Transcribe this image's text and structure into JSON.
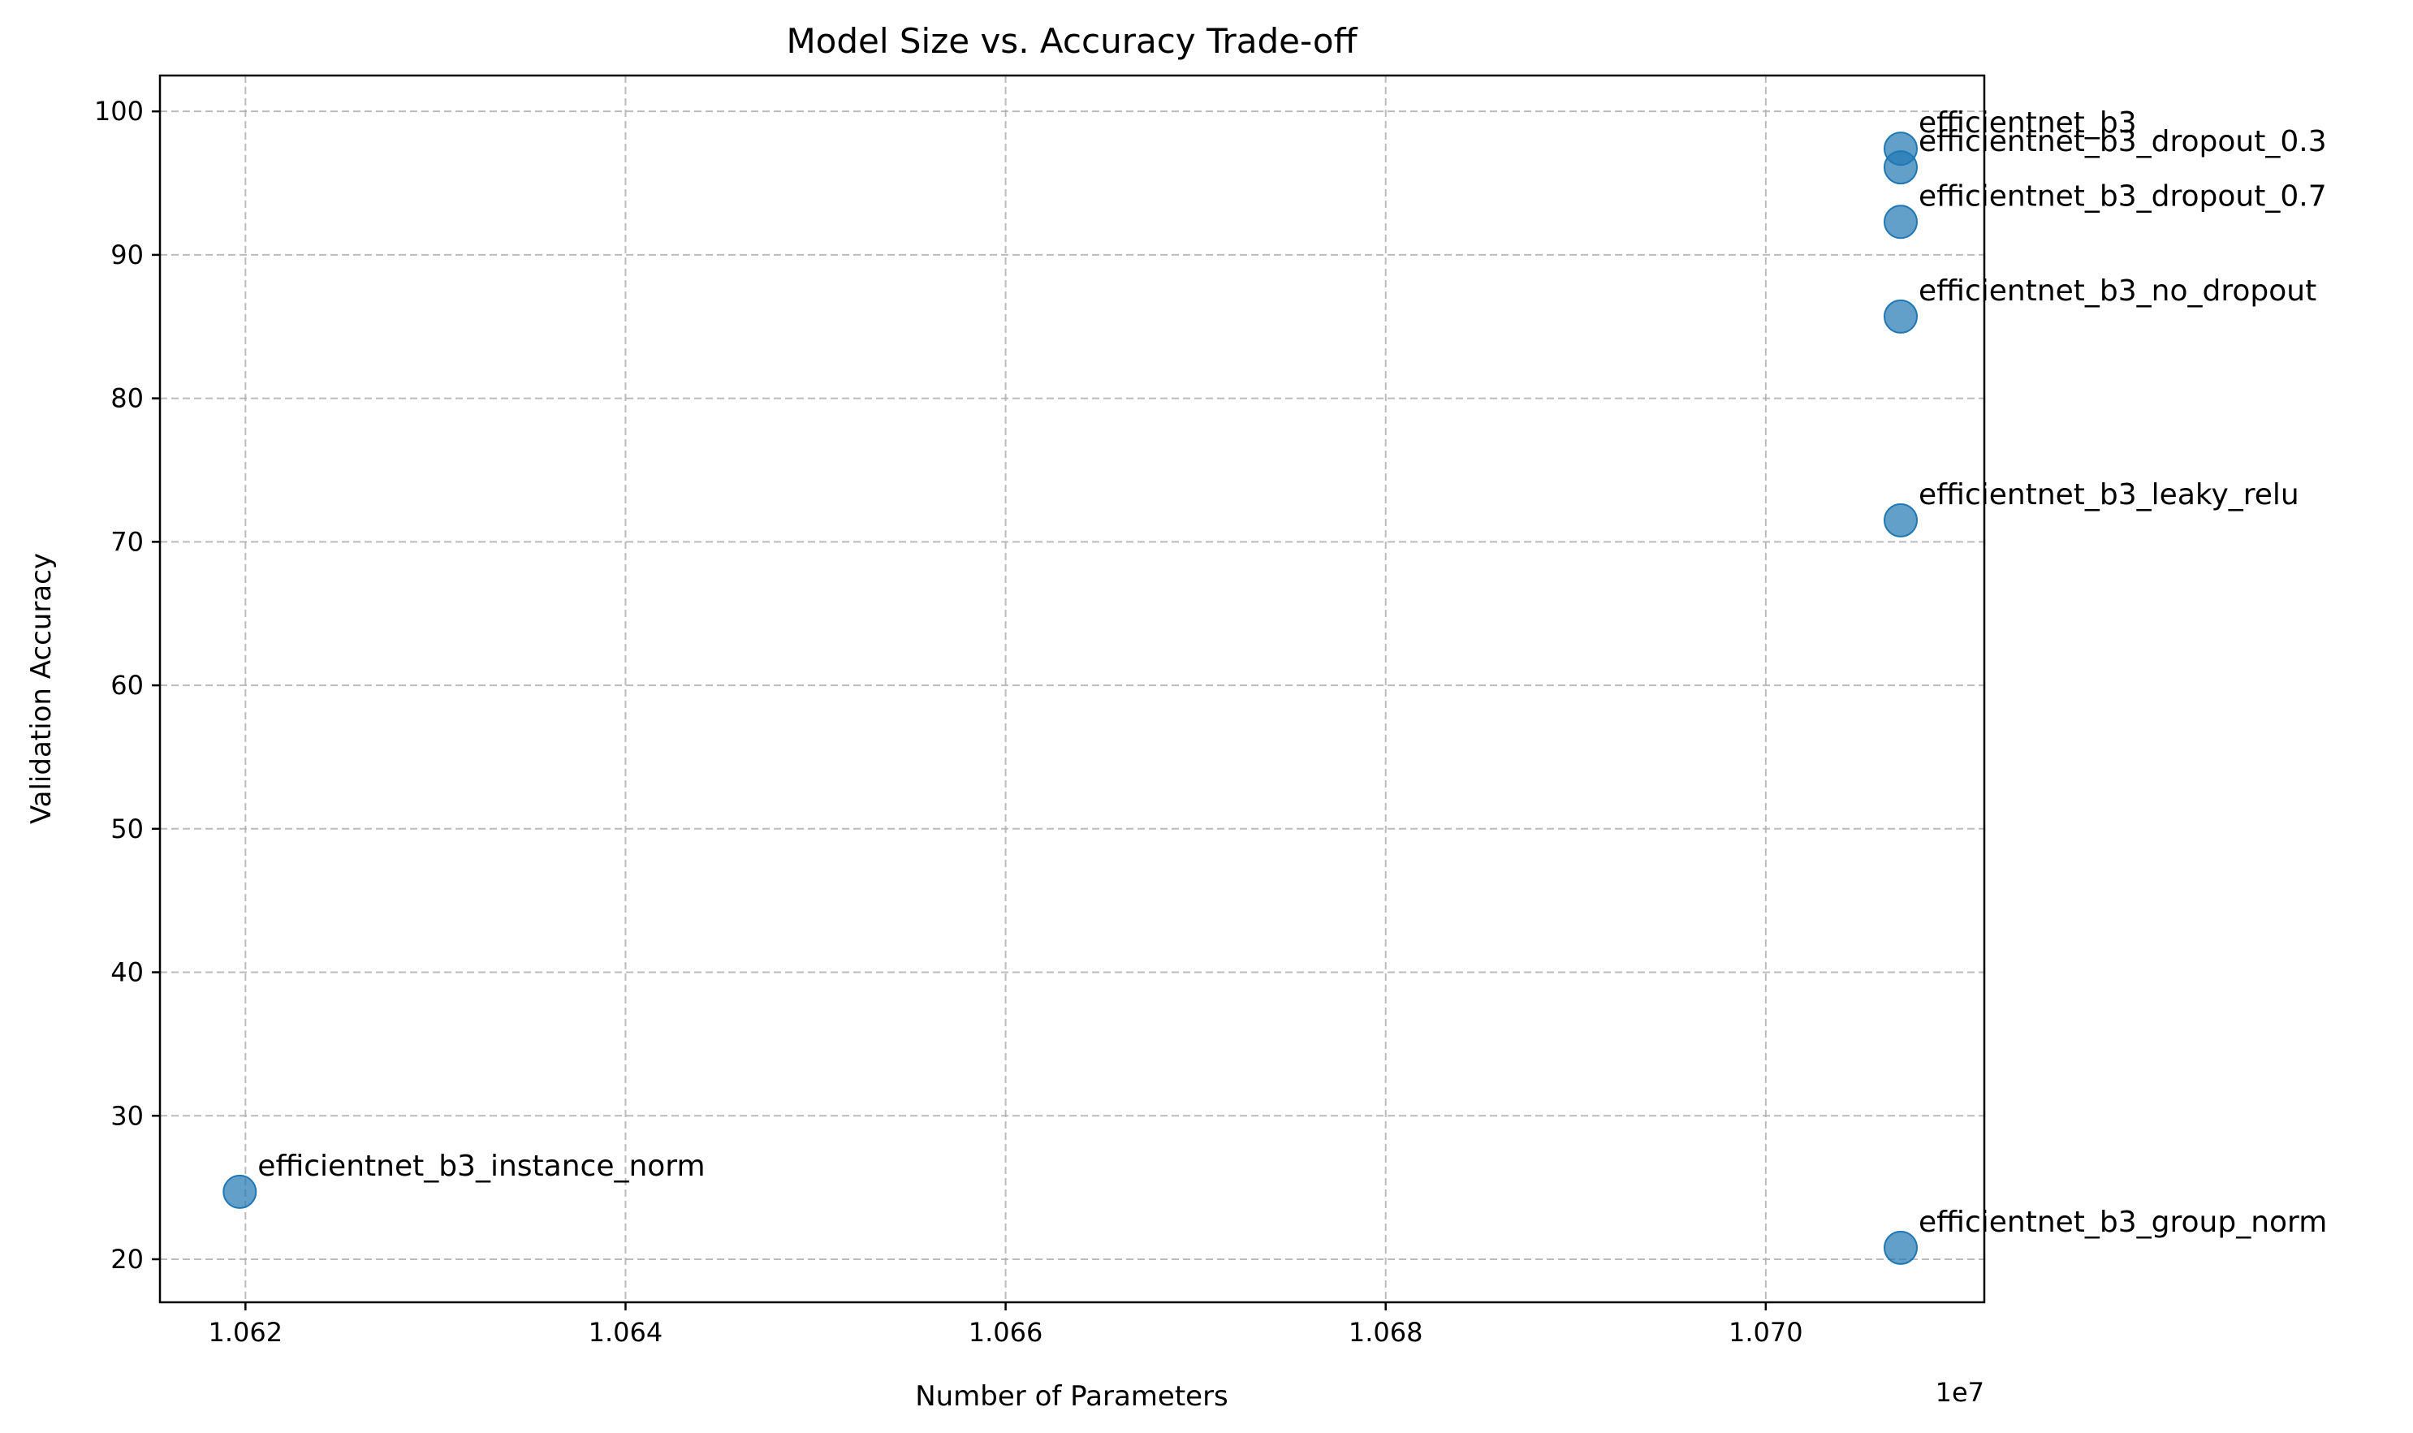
{
  "chart_data": {
    "type": "scatter",
    "title": "Model Size vs. Accuracy Trade-off",
    "xlabel": "Number of Parameters",
    "ylabel": "Validation Accuracy",
    "x_offset_label": "1e7",
    "xlim": [
      1.06155,
      1.07115
    ],
    "ylim": [
      17,
      102.5
    ],
    "x_ticks": [
      1.062,
      1.064,
      1.066,
      1.068,
      1.07
    ],
    "x_tick_labels": [
      "1.062",
      "1.064",
      "1.066",
      "1.068",
      "1.070"
    ],
    "y_ticks": [
      20,
      30,
      40,
      50,
      60,
      70,
      80,
      90,
      100
    ],
    "y_tick_labels": [
      "20",
      "30",
      "40",
      "50",
      "60",
      "70",
      "80",
      "90",
      "100"
    ],
    "grid": true,
    "marker_color": "#1f77b4",
    "points": [
      {
        "label": "efficientnet_b3",
        "x": 1.07071,
        "y": 97.4
      },
      {
        "label": "efficientnet_b3_dropout_0.3",
        "x": 1.07071,
        "y": 96.1
      },
      {
        "label": "efficientnet_b3_dropout_0.7",
        "x": 1.07071,
        "y": 92.3
      },
      {
        "label": "efficientnet_b3_no_dropout",
        "x": 1.07071,
        "y": 85.7
      },
      {
        "label": "efficientnet_b3_leaky_relu",
        "x": 1.07071,
        "y": 71.5
      },
      {
        "label": "efficientnet_b3_instance_norm",
        "x": 1.06197,
        "y": 24.7
      },
      {
        "label": "efficientnet_b3_group_norm",
        "x": 1.07071,
        "y": 20.8
      }
    ]
  }
}
